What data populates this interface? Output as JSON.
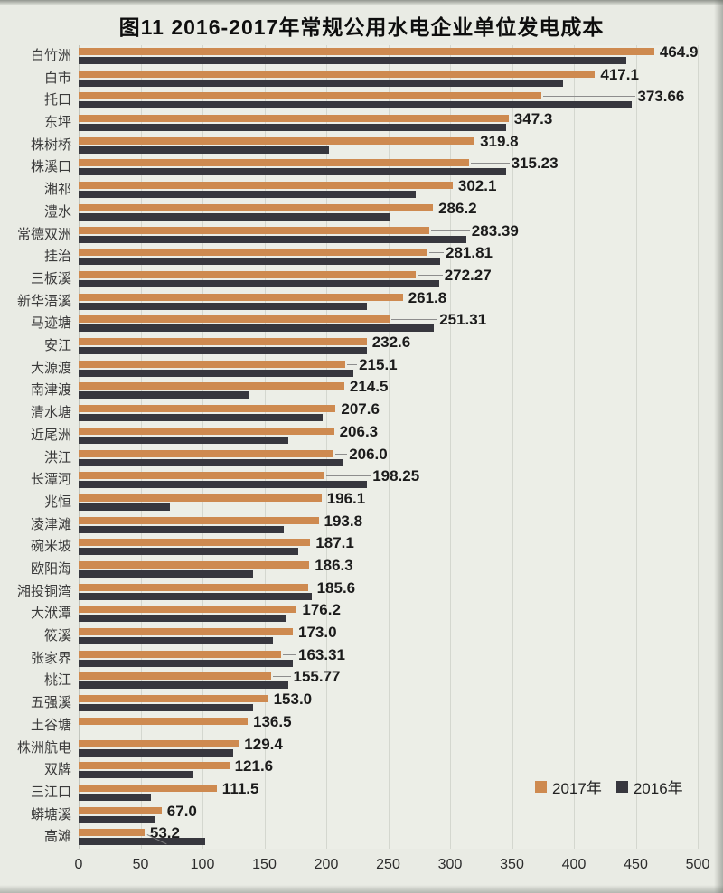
{
  "page": {
    "title": "图11 2016-2017年常规公用水电企业单位发电成本"
  },
  "legend": {
    "items": [
      {
        "label": "2017年",
        "color": "#CE8A50"
      },
      {
        "label": "2016年",
        "color": "#37373E"
      }
    ]
  },
  "colors": {
    "series_2017": "#CE8A50",
    "series_2016": "#37373E",
    "paper_background": "#E9EBE4",
    "plot_background": "#ECEEE7",
    "gridline": "#d4d7cf",
    "title_text": "#0e0e0e",
    "value_label_text": "#1b1b1b",
    "category_label_text": "#3b3b3b",
    "axis_tick_text": "#2c2c2c"
  },
  "chart_data": {
    "type": "bar",
    "orientation": "horizontal",
    "title": "图11 2016-2017年常规公用水电企业单位发电成本",
    "categories": [
      "白竹洲",
      "白市",
      "托口",
      "东坪",
      "株树桥",
      "株溪口",
      "湘祁",
      "澧水",
      "常德双洲",
      "挂治",
      "三板溪",
      "新华浯溪",
      "马迹塘",
      "安江",
      "大源渡",
      "南津渡",
      "清水塘",
      "近尾洲",
      "洪江",
      "长潭河",
      "兆恒",
      "凌津滩",
      "碗米坡",
      "欧阳海",
      "湘投铜湾",
      "大洑潭",
      "筱溪",
      "张家界",
      "桃江",
      "五强溪",
      "土谷塘",
      "株洲航电",
      "双牌",
      "三江口",
      "蟒塘溪",
      "高滩"
    ],
    "series": [
      {
        "name": "2017年",
        "color": "#CE8A50",
        "values": [
          464.9,
          417.1,
          373.66,
          347.3,
          319.8,
          315.23,
          302.1,
          286.2,
          283.39,
          281.81,
          272.27,
          261.8,
          251.31,
          232.6,
          215.1,
          214.5,
          207.6,
          206.3,
          206.0,
          198.25,
          196.1,
          193.8,
          187.1,
          186.3,
          185.6,
          176.2,
          173.0,
          163.31,
          155.77,
          153.0,
          136.5,
          129.4,
          121.6,
          111.5,
          67.0,
          53.2
        ],
        "value_labels": [
          "464.9",
          "417.1",
          "373.66",
          "347.3",
          "319.8",
          "315.23",
          "302.1",
          "286.2",
          "283.39",
          "281.81",
          "272.27",
          "261.8",
          "251.31",
          "232.6",
          "215.1",
          "214.5",
          "207.6",
          "206.3",
          "206.0",
          "198.25",
          "196.1",
          "193.8",
          "187.1",
          "186.3",
          "185.6",
          "176.2",
          "173.0",
          "163.31",
          "155.77",
          "153.0",
          "136.5",
          "129.4",
          "121.6",
          "111.5",
          "67.0",
          "53.2"
        ]
      },
      {
        "name": "2016年",
        "color": "#37373E",
        "estimated": true,
        "values": [
          442,
          391,
          447,
          345,
          202,
          345,
          272,
          252,
          313,
          292,
          291,
          233,
          287,
          233,
          222,
          138,
          197,
          169,
          214,
          233,
          74,
          166,
          177,
          141,
          188,
          168,
          157,
          173,
          169,
          141,
          0,
          125,
          93,
          58,
          62,
          102
        ]
      }
    ],
    "xlim": [
      0,
      500
    ],
    "x_ticks": [
      0,
      50,
      100,
      150,
      200,
      250,
      300,
      350,
      400,
      450,
      500
    ],
    "grid": true,
    "legend_position": "bottom-right",
    "value_labels_series": "2017年",
    "label_after_2016_indices": [
      2,
      5,
      8,
      9,
      10,
      12,
      14,
      18,
      19,
      24,
      27,
      28
    ],
    "diagonal_leader_indices": [
      35
    ]
  }
}
